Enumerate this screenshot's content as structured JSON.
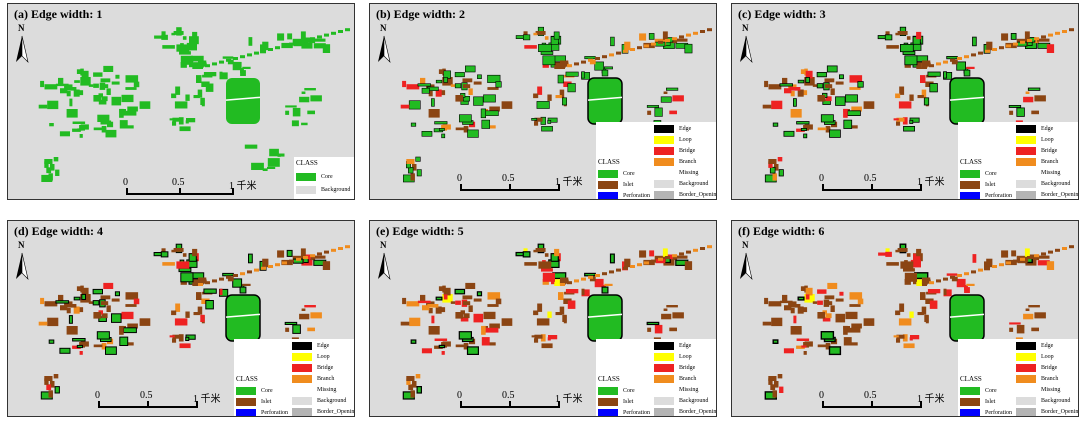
{
  "panels": [
    {
      "title": "(a) Edge width: 1"
    },
    {
      "title": "(b) Edge width: 2"
    },
    {
      "title": "(c) Edge width: 3"
    },
    {
      "title": "(d) Edge width: 4"
    },
    {
      "title": "(e) Edge width: 5"
    },
    {
      "title": "(f) Edge width: 6"
    }
  ],
  "north_label": "N",
  "scale_bar": {
    "labels": [
      "0",
      "0.5",
      "1 千米"
    ]
  },
  "legend": {
    "class_label": "CLASS",
    "short_items": [
      {
        "label": "Core",
        "color": "#22bb22"
      },
      {
        "label": "Background",
        "color": "#dcdcdc"
      }
    ],
    "right_items": [
      {
        "label": "Edge",
        "color": "#000000"
      },
      {
        "label": "Loop",
        "color": "#ffff00"
      },
      {
        "label": "Bridge",
        "color": "#ee2222"
      },
      {
        "label": "Branch",
        "color": "#f08c1e"
      },
      {
        "label": "Missing",
        "color": "#ffffff"
      },
      {
        "label": "Background",
        "color": "#dcdcdc"
      },
      {
        "label": "Border_Opening",
        "color": "#b4b4b4"
      }
    ],
    "left_items": [
      {
        "label": "Core",
        "color": "#22bb22"
      },
      {
        "label": "Islet",
        "color": "#8b4513"
      },
      {
        "label": "Perforation",
        "color": "#0000ff"
      }
    ]
  },
  "colors": {
    "background": "#dcdcdc",
    "core": "#22bb22",
    "edge": "#000000",
    "bridge": "#ee2222",
    "branch": "#f08c1e",
    "islet": "#8b4513",
    "loop": "#ffff00"
  }
}
